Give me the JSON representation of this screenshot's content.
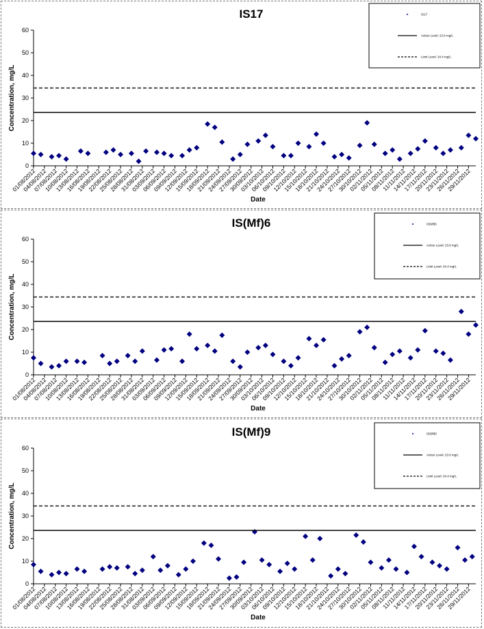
{
  "chart_data": [
    {
      "type": "scatter",
      "title": "IS17",
      "xlabel": "Date",
      "ylabel": "Concentration, mg/L",
      "ylim": [
        0,
        60
      ],
      "yticks": [
        0,
        10,
        20,
        30,
        40,
        50,
        60
      ],
      "xlim": [
        "01/08/2012",
        "01/12/2012"
      ],
      "xticks": [
        "01/08/2012",
        "04/08/2012",
        "07/08/2012",
        "10/08/2012",
        "13/08/2012",
        "16/08/2012",
        "19/08/2012",
        "22/08/2012",
        "25/08/2012",
        "28/08/2012",
        "31/08/2012",
        "03/09/2012",
        "06/09/2012",
        "09/09/2012",
        "12/09/2012",
        "15/09/2012",
        "18/09/2012",
        "21/09/2012",
        "24/09/2012",
        "27/09/2012",
        "30/09/2012",
        "03/10/2012",
        "06/10/2012",
        "09/10/2012",
        "12/10/2012",
        "15/10/2012",
        "18/10/2012",
        "21/10/2012",
        "24/10/2012",
        "27/10/2012",
        "30/10/2012",
        "02/11/2012",
        "05/11/2012",
        "08/11/2012",
        "11/11/2012",
        "14/11/2012",
        "17/11/2012",
        "20/11/2012",
        "23/11/2012",
        "26/11/2012",
        "29/11/2012"
      ],
      "legend_position": "top-right",
      "series": [
        {
          "name": "IS17",
          "kind": "points",
          "color": "#000080",
          "x": [
            "01/08/2012",
            "03/08/2012",
            "06/08/2012",
            "08/08/2012",
            "10/08/2012",
            "14/08/2012",
            "16/08/2012",
            "21/08/2012",
            "23/08/2012",
            "25/08/2012",
            "28/08/2012",
            "30/08/2012",
            "01/09/2012",
            "04/09/2012",
            "06/09/2012",
            "08/09/2012",
            "11/09/2012",
            "13/09/2012",
            "15/09/2012",
            "18/09/2012",
            "20/09/2012",
            "22/09/2012",
            "25/09/2012",
            "27/09/2012",
            "29/09/2012",
            "02/10/2012",
            "04/10/2012",
            "06/10/2012",
            "09/10/2012",
            "11/10/2012",
            "13/10/2012",
            "16/10/2012",
            "18/10/2012",
            "20/10/2012",
            "23/10/2012",
            "25/10/2012",
            "27/10/2012",
            "30/10/2012",
            "01/11/2012",
            "03/11/2012",
            "06/11/2012",
            "08/11/2012",
            "10/11/2012",
            "13/11/2012",
            "15/11/2012",
            "17/11/2012",
            "20/11/2012",
            "22/11/2012",
            "24/11/2012",
            "27/11/2012",
            "29/11/2012",
            "01/12/2012"
          ],
          "y": [
            5.5,
            5,
            4,
            4.5,
            3,
            6.5,
            5.5,
            6,
            7,
            5,
            5.5,
            2,
            6.5,
            6,
            5.5,
            4.5,
            4.5,
            7,
            8,
            18.5,
            17,
            10.5,
            3,
            5,
            9.5,
            11,
            13.5,
            8.5,
            4.5,
            4.5,
            10,
            8.5,
            14,
            10,
            4,
            5,
            3.5,
            9,
            19,
            9.5,
            5.5,
            7,
            3,
            5.5,
            7.5,
            11,
            8,
            5.5,
            7,
            8,
            13.5,
            12
          ]
        },
        {
          "name": "Action Level: 23.6 mg/L",
          "kind": "solid-line",
          "value": 23.6,
          "color": "#000000"
        },
        {
          "name": "Limit Level: 34.4 mg/L",
          "kind": "dashed-line",
          "value": 34.4,
          "color": "#000000"
        }
      ]
    },
    {
      "type": "scatter",
      "title": "IS(Mf)6",
      "xlabel": "Date",
      "ylabel": "Concentration, mg/L",
      "ylim": [
        0,
        60
      ],
      "yticks": [
        0,
        10,
        20,
        30,
        40,
        50,
        60
      ],
      "xlim": [
        "01/08/2012",
        "01/12/2012"
      ],
      "xticks": [
        "01/08/2012",
        "04/08/2012",
        "07/08/2012",
        "10/08/2012",
        "13/08/2012",
        "16/08/2012",
        "19/08/2012",
        "22/08/2012",
        "25/08/2012",
        "28/08/2012",
        "31/08/2012",
        "03/09/2012",
        "06/09/2012",
        "09/09/2012",
        "12/09/2012",
        "15/09/2012",
        "18/09/2012",
        "21/09/2012",
        "24/09/2012",
        "27/09/2012",
        "30/09/2012",
        "03/10/2012",
        "06/10/2012",
        "09/10/2012",
        "12/10/2012",
        "15/10/2012",
        "18/10/2012",
        "21/10/2012",
        "24/10/2012",
        "27/10/2012",
        "30/10/2012",
        "02/11/2012",
        "05/11/2012",
        "08/11/2012",
        "11/11/2012",
        "14/11/2012",
        "17/11/2012",
        "20/11/2012",
        "23/11/2012",
        "26/11/2012",
        "29/11/2012"
      ],
      "legend_position": "top-right",
      "series": [
        {
          "name": "IS(Mf)6",
          "kind": "points",
          "color": "#000080",
          "x": [
            "01/08/2012",
            "03/08/2012",
            "06/08/2012",
            "08/08/2012",
            "10/08/2012",
            "13/08/2012",
            "15/08/2012",
            "20/08/2012",
            "22/08/2012",
            "24/08/2012",
            "27/08/2012",
            "29/08/2012",
            "31/08/2012",
            "04/09/2012",
            "06/09/2012",
            "08/09/2012",
            "11/09/2012",
            "13/09/2012",
            "15/09/2012",
            "18/09/2012",
            "20/09/2012",
            "22/09/2012",
            "25/09/2012",
            "27/09/2012",
            "29/09/2012",
            "02/10/2012",
            "04/10/2012",
            "06/10/2012",
            "09/10/2012",
            "11/10/2012",
            "13/10/2012",
            "16/10/2012",
            "18/10/2012",
            "20/10/2012",
            "23/10/2012",
            "25/10/2012",
            "27/10/2012",
            "30/10/2012",
            "01/11/2012",
            "03/11/2012",
            "06/11/2012",
            "08/11/2012",
            "10/11/2012",
            "13/11/2012",
            "15/11/2012",
            "17/11/2012",
            "20/11/2012",
            "22/11/2012",
            "24/11/2012",
            "27/11/2012",
            "29/11/2012",
            "01/12/2012"
          ],
          "y": [
            7.5,
            5,
            3.5,
            4,
            6,
            6,
            5.5,
            8.5,
            5,
            6,
            8.5,
            6,
            10.5,
            6.5,
            11,
            11.5,
            6,
            18,
            11.5,
            13,
            10.5,
            17.5,
            6,
            3.5,
            10,
            12,
            13,
            9,
            6,
            4,
            7.5,
            16,
            13,
            15.5,
            4,
            7,
            8.5,
            19,
            21,
            12,
            5.5,
            9,
            10.5,
            7.5,
            11,
            19.5,
            10.5,
            9.5,
            6.5,
            28,
            18,
            22
          ]
        },
        {
          "name": "Action Level: 23.6 mg/L",
          "kind": "solid-line",
          "value": 23.6,
          "color": "#000000"
        },
        {
          "name": "Limit Level: 34.4 mg/L",
          "kind": "dashed-line",
          "value": 34.4,
          "color": "#000000"
        }
      ]
    },
    {
      "type": "scatter",
      "title": "IS(Mf)9",
      "xlabel": "Date",
      "ylabel": "Concentration, mg/L",
      "ylim": [
        0,
        60
      ],
      "yticks": [
        0,
        10,
        20,
        30,
        40,
        50,
        60
      ],
      "xlim": [
        "01/08/2012",
        "01/12/2012"
      ],
      "xticks": [
        "01/08/2012",
        "04/08/2012",
        "07/08/2012",
        "10/08/2012",
        "13/08/2012",
        "16/08/2012",
        "19/08/2012",
        "22/08/2012",
        "25/08/2012",
        "28/08/2012",
        "31/08/2012",
        "03/09/2012",
        "06/09/2012",
        "09/09/2012",
        "12/09/2012",
        "15/09/2012",
        "18/09/2012",
        "21/09/2012",
        "24/09/2012",
        "27/09/2012",
        "30/09/2012",
        "03/10/2012",
        "06/10/2012",
        "09/10/2012",
        "12/10/2012",
        "15/10/2012",
        "18/10/2012",
        "21/10/2012",
        "24/10/2012",
        "27/10/2012",
        "30/10/2012",
        "02/11/2012",
        "05/11/2012",
        "08/11/2012",
        "11/11/2012",
        "14/11/2012",
        "17/11/2012",
        "20/11/2012",
        "23/11/2012",
        "26/11/2012",
        "29/11/2012"
      ],
      "legend_position": "top-right",
      "series": [
        {
          "name": "IS(Mf)9",
          "kind": "points",
          "color": "#000080",
          "x": [
            "01/08/2012",
            "03/08/2012",
            "06/08/2012",
            "08/08/2012",
            "10/08/2012",
            "13/08/2012",
            "15/08/2012",
            "20/08/2012",
            "22/08/2012",
            "24/08/2012",
            "27/08/2012",
            "29/08/2012",
            "31/08/2012",
            "03/09/2012",
            "05/09/2012",
            "07/09/2012",
            "10/09/2012",
            "12/09/2012",
            "14/09/2012",
            "17/09/2012",
            "19/09/2012",
            "21/09/2012",
            "24/09/2012",
            "26/09/2012",
            "28/09/2012",
            "01/10/2012",
            "03/10/2012",
            "05/10/2012",
            "08/10/2012",
            "10/10/2012",
            "12/10/2012",
            "15/10/2012",
            "17/10/2012",
            "19/10/2012",
            "22/10/2012",
            "24/10/2012",
            "26/10/2012",
            "29/10/2012",
            "31/10/2012",
            "02/11/2012",
            "05/11/2012",
            "07/11/2012",
            "09/11/2012",
            "12/11/2012",
            "14/11/2012",
            "16/11/2012",
            "19/11/2012",
            "21/11/2012",
            "23/11/2012",
            "26/11/2012",
            "28/11/2012",
            "30/11/2012"
          ],
          "y": [
            8.5,
            5.5,
            4,
            5,
            4.5,
            6.5,
            5.5,
            6.5,
            7.5,
            7,
            7.5,
            4.5,
            6,
            12,
            6,
            8,
            4,
            6.5,
            10,
            18,
            17,
            11,
            2.5,
            3,
            9.5,
            23,
            10.5,
            8.5,
            5.5,
            9,
            6.5,
            21,
            10.5,
            20,
            3.5,
            6.5,
            4.5,
            21.5,
            18.5,
            9.5,
            7,
            10.5,
            6.5,
            5,
            16.5,
            12,
            9.5,
            8,
            6.5,
            16,
            10.5,
            12
          ]
        },
        {
          "name": "Action Level: 23.6 mg/L",
          "kind": "solid-line",
          "value": 23.6,
          "color": "#000000"
        },
        {
          "name": "Limit Level: 34.4 mg/L",
          "kind": "dashed-line",
          "value": 34.4,
          "color": "#000000"
        }
      ]
    }
  ]
}
